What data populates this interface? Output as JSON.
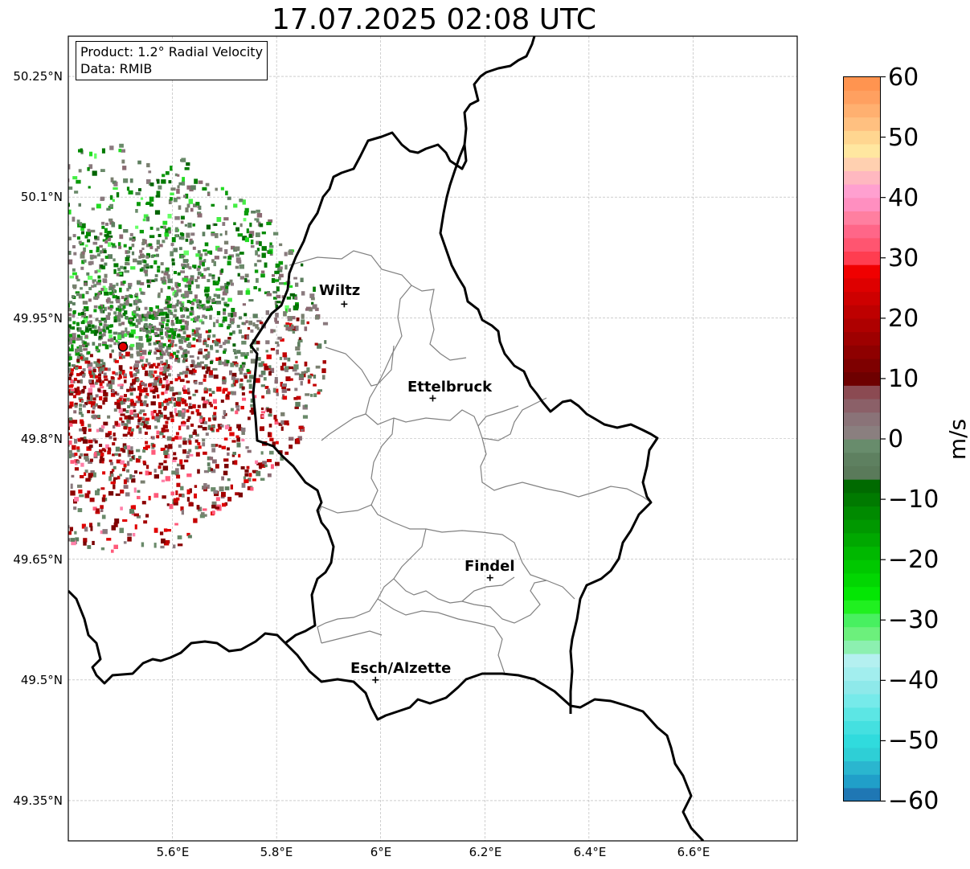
{
  "title": "17.07.2025 02:08 UTC",
  "info": {
    "product": "Product: 1.2° Radial Velocity",
    "source": "Data: RMIB"
  },
  "lat_labels": [
    "50.25°N",
    "50.1°N",
    "49.95°N",
    "49.8°N",
    "49.65°N",
    "49.5°N",
    "49.35°N"
  ],
  "lon_labels": [
    "5.6°E",
    "5.8°E",
    "6°E",
    "6.2°E",
    "6.4°E",
    "6.6°E"
  ],
  "cities": [
    {
      "name": "Wiltz",
      "lon": 5.93,
      "lat": 49.967
    },
    {
      "name": "Ettelbruck",
      "lon": 6.1,
      "lat": 49.85
    },
    {
      "name": "Findel",
      "lon": 6.21,
      "lat": 49.627
    },
    {
      "name": "Esch/Alzette",
      "lon": 5.99,
      "lat": 49.5
    }
  ],
  "radar_site": {
    "lon": 5.505,
    "lat": 49.914
  },
  "extent": {
    "lon_min": 5.4,
    "lon_max": 6.8,
    "lat_min": 49.3,
    "lat_max": 50.3
  },
  "colorbar": {
    "unit": "m/s",
    "min": -60,
    "max": 60,
    "ticks": [
      "60",
      "50",
      "40",
      "30",
      "20",
      "10",
      "0",
      "−10",
      "−20",
      "−30",
      "−40",
      "−50",
      "−60"
    ],
    "colors": [
      "#1f77b4",
      "#209fc9",
      "#2ab6cf",
      "#2ecfd6",
      "#30dbdd",
      "#44e0e0",
      "#5ce6e4",
      "#76eaea",
      "#8ee9ea",
      "#a2eeee",
      "#b4f0f0",
      "#8cf0b0",
      "#6cf07c",
      "#48f060",
      "#20f020",
      "#04e604",
      "#02d602",
      "#00c800",
      "#00b800",
      "#00a800",
      "#009800",
      "#008a00",
      "#007a00",
      "#006a00",
      "#5a7a5a",
      "#5e8060",
      "#688c6c",
      "#8a7f7f",
      "#8a7378",
      "#8b6068",
      "#8b4a52",
      "#6e0000",
      "#7e0000",
      "#8e0000",
      "#9e0000",
      "#ae0000",
      "#be0000",
      "#ce0000",
      "#de0000",
      "#f00000",
      "#ff3d50",
      "#ff5570",
      "#ff6688",
      "#ff7fa0",
      "#ff8fc0",
      "#ffa0d0",
      "#ffb8c0",
      "#ffd0b0",
      "#ffe7a0",
      "#ffd690",
      "#ffc080",
      "#ffb070",
      "#ffa060",
      "#ff9450"
    ]
  }
}
